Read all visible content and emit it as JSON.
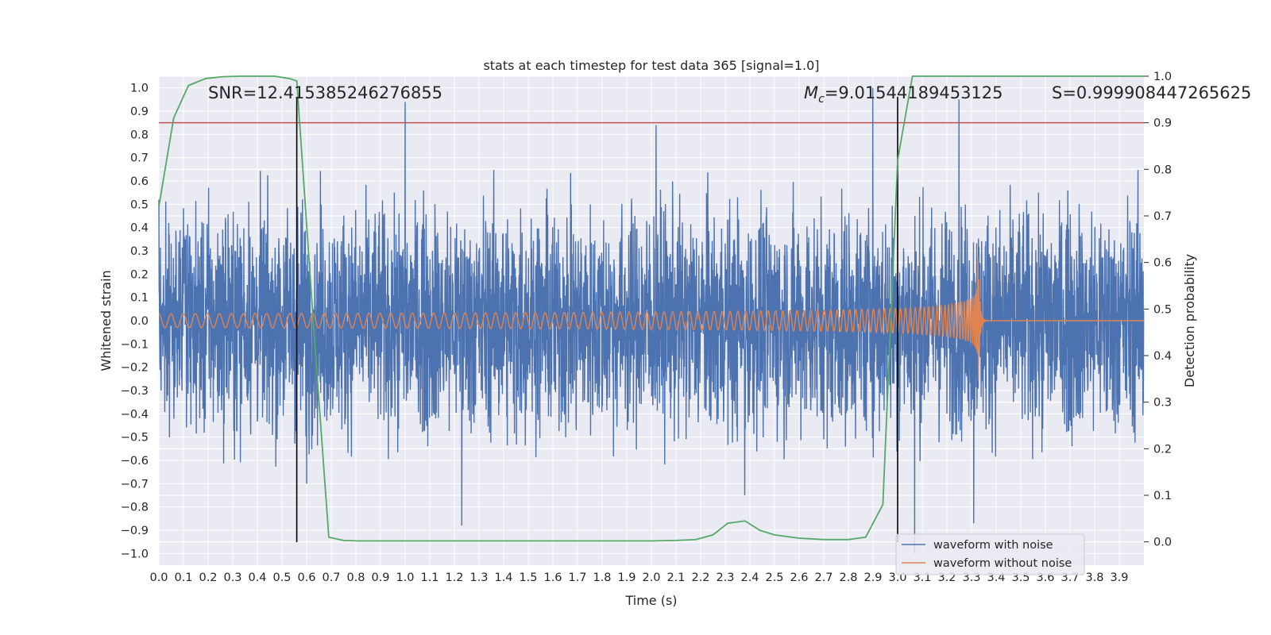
{
  "chart_data": {
    "type": "line",
    "title": "stats at each timestep for test data 365 [signal=1.0]",
    "xlabel": "Time (s)",
    "ylabel": "Whitened strain",
    "y2label": "Detection probability",
    "xlim": [
      0.0,
      4.0
    ],
    "ylim": [
      -1.05,
      1.05
    ],
    "y2lim": [
      -0.05,
      1.0
    ],
    "grid": true,
    "legend_position": "lower-right",
    "x_ticks": [
      "0.0",
      "0.1",
      "0.2",
      "0.3",
      "0.4",
      "0.5",
      "0.6",
      "0.7",
      "0.8",
      "0.9",
      "1.0",
      "1.1",
      "1.2",
      "1.3",
      "1.4",
      "1.5",
      "1.6",
      "1.7",
      "1.8",
      "1.9",
      "2.0",
      "2.1",
      "2.2",
      "2.3",
      "2.4",
      "2.5",
      "2.6",
      "2.7",
      "2.8",
      "2.9",
      "3.0",
      "3.1",
      "3.2",
      "3.3",
      "3.4",
      "3.5",
      "3.6",
      "3.7",
      "3.8",
      "3.9"
    ],
    "y_ticks": [
      "1.0",
      "0.9",
      "0.8",
      "0.7",
      "0.6",
      "0.5",
      "0.4",
      "0.3",
      "0.2",
      "0.1",
      "0.0",
      "−0.1",
      "−0.2",
      "−0.3",
      "−0.4",
      "−0.5",
      "−0.6",
      "−0.7",
      "−0.8",
      "−0.9",
      "−1.0"
    ],
    "y2_ticks": [
      "1.0",
      "0.9",
      "0.8",
      "0.7",
      "0.6",
      "0.5",
      "0.4",
      "0.3",
      "0.2",
      "0.1",
      "0.0"
    ],
    "annotations": {
      "snr": "SNR=12.415385246276855",
      "mc_symbol": "M",
      "mc_subscript": "c",
      "mc_value": "=9.01544189453125",
      "s": "S=0.999908447265625"
    },
    "threshold_y2": 0.9,
    "vertical_lines_x": [
      0.56,
      3.0
    ],
    "series": [
      {
        "name": "waveform with noise",
        "color": "#4c72b0",
        "axis": "left",
        "noise_amplitude": 0.65,
        "peaks": [
          [
            0.0,
            0.52
          ],
          [
            1.0,
            0.94
          ],
          [
            2.02,
            0.84
          ],
          [
            2.9,
            1.0
          ],
          [
            3.25,
            0.95
          ],
          [
            3.31,
            0.88
          ],
          [
            1.23,
            -0.88
          ],
          [
            3.07,
            -1.0
          ],
          [
            3.31,
            -0.87
          ],
          [
            0.6,
            -0.7
          ],
          [
            2.38,
            -0.75
          ]
        ]
      },
      {
        "name": "waveform without noise",
        "color": "#dd8452",
        "axis": "left",
        "chirp_start_amplitude": 0.03,
        "chirp_peak_amplitude": 0.37,
        "merger_time": 3.33,
        "start_frequency": 20
      },
      {
        "name": "",
        "color": "#55a868",
        "axis": "right",
        "x": [
          0.0,
          0.06,
          0.12,
          0.19,
          0.26,
          0.33,
          0.4,
          0.47,
          0.53,
          0.56,
          0.63,
          0.69,
          0.75,
          0.81,
          1.0,
          1.2,
          1.5,
          1.8,
          2.0,
          2.1,
          2.18,
          2.25,
          2.31,
          2.38,
          2.44,
          2.5,
          2.6,
          2.7,
          2.8,
          2.87,
          2.94,
          3.0,
          3.06,
          3.3,
          3.6,
          4.0
        ],
        "y": [
          0.72,
          0.91,
          0.98,
          0.995,
          0.999,
          1.0,
          1.0,
          1.0,
          0.995,
          0.99,
          0.45,
          0.01,
          0.003,
          0.002,
          0.002,
          0.002,
          0.002,
          0.002,
          0.002,
          0.003,
          0.005,
          0.015,
          0.04,
          0.045,
          0.025,
          0.015,
          0.008,
          0.005,
          0.005,
          0.01,
          0.08,
          0.82,
          1.0,
          1.0,
          1.0,
          1.0
        ]
      }
    ]
  }
}
